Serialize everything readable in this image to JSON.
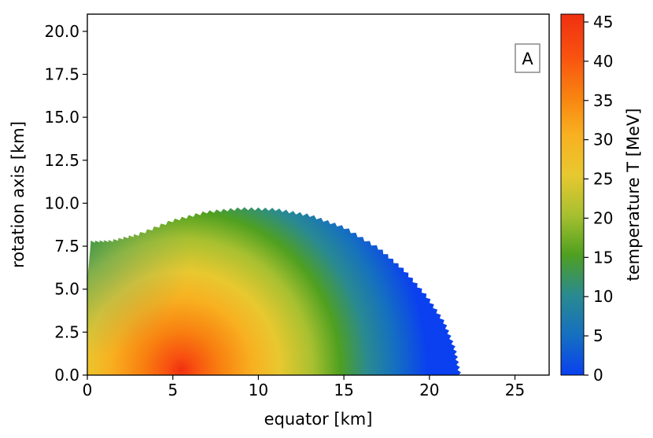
{
  "chart_data": {
    "type": "heatmap",
    "description_panel": "A",
    "xlabel": "equator [km]",
    "ylabel": "rotation axis [km]",
    "xlim": [
      0,
      27
    ],
    "ylim": [
      0,
      21
    ],
    "x_ticks": [
      0,
      5,
      10,
      15,
      20,
      25
    ],
    "x_tick_labels": [
      "0",
      "5",
      "10",
      "15",
      "20",
      "25"
    ],
    "y_ticks": [
      0,
      2.5,
      5,
      7.5,
      10,
      12.5,
      15,
      17.5,
      20
    ],
    "y_tick_labels": [
      "0.0",
      "2.5",
      "5.0",
      "7.5",
      "10.0",
      "12.5",
      "15.0",
      "17.5",
      "20.0"
    ],
    "colorbar": {
      "label": "temperature T [MeV]",
      "range": [
        0,
        46
      ],
      "ticks": [
        0,
        5,
        10,
        15,
        20,
        25,
        30,
        35,
        40,
        45
      ],
      "tick_labels": [
        "0",
        "5",
        "10",
        "15",
        "20",
        "25",
        "30",
        "35",
        "40",
        "45"
      ],
      "colors": [
        "#0a40f0",
        "#1570c0",
        "#2a8a90",
        "#4fa020",
        "#a8c030",
        "#e8c830",
        "#f8b020",
        "#f88010",
        "#f85010",
        "#f03010"
      ]
    },
    "field": {
      "boundary_points": [
        [
          0.2,
          7.7
        ],
        [
          1.5,
          7.75
        ],
        [
          3.0,
          8.1
        ],
        [
          5.0,
          8.9
        ],
        [
          7.0,
          9.4
        ],
        [
          9.0,
          9.6
        ],
        [
          11.0,
          9.55
        ],
        [
          13.0,
          9.2
        ],
        [
          15.0,
          8.5
        ],
        [
          17.0,
          7.3
        ],
        [
          18.5,
          6.0
        ],
        [
          19.8,
          4.5
        ],
        [
          20.8,
          3.0
        ],
        [
          21.4,
          1.5
        ],
        [
          21.7,
          0.0
        ]
      ],
      "peak_temperature_location": [
        5.5,
        0.3
      ],
      "peak_temperature": 46,
      "min_temperature": 0
    }
  }
}
